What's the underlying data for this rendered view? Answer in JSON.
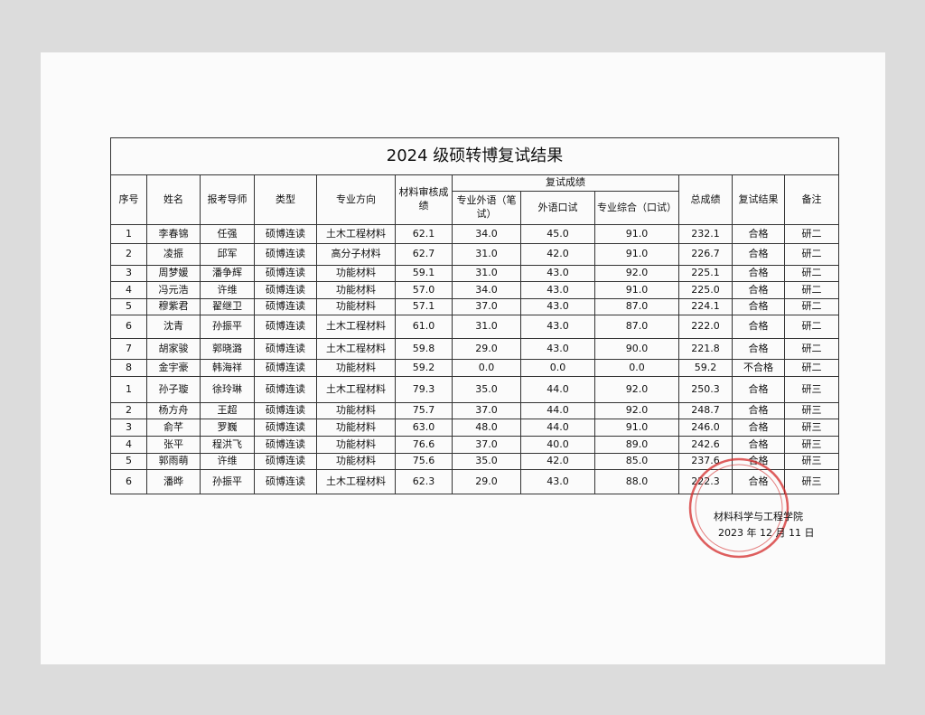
{
  "title": "2024 级硕转博复试结果",
  "header": {
    "index": "序号",
    "name": "姓名",
    "advisor": "报考导师",
    "type": "类型",
    "direction": "专业方向",
    "review": "材料审核成绩",
    "retest": "复试成绩",
    "written": "专业外语（笔试）",
    "oral": "外语口试",
    "comprehensive": "专业综合（口试）",
    "total": "总成绩",
    "result": "复试结果",
    "note": "备注"
  },
  "rows": [
    [
      "1",
      "李春锦",
      "任强",
      "硕博连读",
      "土木工程材料",
      "62.1",
      "34.0",
      "45.0",
      "91.0",
      "232.1",
      "合格",
      "研二"
    ],
    [
      "2",
      "凌振",
      "邱军",
      "硕博连读",
      "高分子材料",
      "62.7",
      "31.0",
      "42.0",
      "91.0",
      "226.7",
      "合格",
      "研二"
    ],
    [
      "3",
      "周梦媛",
      "潘争辉",
      "硕博连读",
      "功能材料",
      "59.1",
      "31.0",
      "43.0",
      "92.0",
      "225.1",
      "合格",
      "研二"
    ],
    [
      "4",
      "冯元浩",
      "许维",
      "硕博连读",
      "功能材料",
      "57.0",
      "34.0",
      "43.0",
      "91.0",
      "225.0",
      "合格",
      "研二"
    ],
    [
      "5",
      "穆紫君",
      "翟继卫",
      "硕博连读",
      "功能材料",
      "57.1",
      "37.0",
      "43.0",
      "87.0",
      "224.1",
      "合格",
      "研二"
    ],
    [
      "6",
      "沈青",
      "孙振平",
      "硕博连读",
      "土木工程材料",
      "61.0",
      "31.0",
      "43.0",
      "87.0",
      "222.0",
      "合格",
      "研二"
    ],
    [
      "7",
      "胡家骏",
      "郭晓潞",
      "硕博连读",
      "土木工程材料",
      "59.8",
      "29.0",
      "43.0",
      "90.0",
      "221.8",
      "合格",
      "研二"
    ],
    [
      "8",
      "金宇豪",
      "韩海祥",
      "硕博连读",
      "功能材料",
      "59.2",
      "0.0",
      "0.0",
      "0.0",
      "59.2",
      "不合格",
      "研二"
    ],
    [
      "1",
      "孙子璇",
      "徐玲琳",
      "硕博连读",
      "土木工程材料",
      "79.3",
      "35.0",
      "44.0",
      "92.0",
      "250.3",
      "合格",
      "研三"
    ],
    [
      "2",
      "杨方舟",
      "王超",
      "硕博连读",
      "功能材料",
      "75.7",
      "37.0",
      "44.0",
      "92.0",
      "248.7",
      "合格",
      "研三"
    ],
    [
      "3",
      "俞芊",
      "罗巍",
      "硕博连读",
      "功能材料",
      "63.0",
      "48.0",
      "44.0",
      "91.0",
      "246.0",
      "合格",
      "研三"
    ],
    [
      "4",
      "张平",
      "程洪飞",
      "硕博连读",
      "功能材料",
      "76.6",
      "37.0",
      "40.0",
      "89.0",
      "242.6",
      "合格",
      "研三"
    ],
    [
      "5",
      "郭雨萌",
      "许维",
      "硕博连读",
      "功能材料",
      "75.6",
      "35.0",
      "42.0",
      "85.0",
      "237.6",
      "合格",
      "研三"
    ],
    [
      "6",
      "潘晔",
      "孙振平",
      "硕博连读",
      "土木工程材料",
      "62.3",
      "29.0",
      "43.0",
      "88.0",
      "222.3",
      "合格",
      "研三"
    ]
  ],
  "footer": {
    "org": "材料科学与工程学院",
    "date": "2023 年 12 月 11 日"
  }
}
